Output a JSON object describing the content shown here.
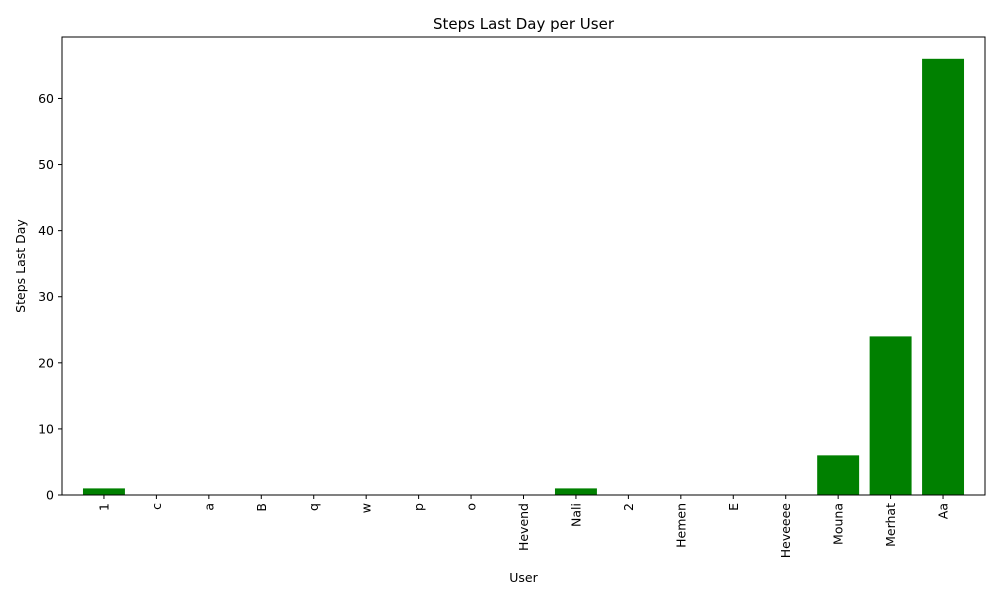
{
  "chart_data": {
    "type": "bar",
    "title": "Steps Last Day per User",
    "xlabel": "User",
    "ylabel": "Steps Last Day",
    "categories": [
      "1",
      "c",
      "a",
      "B",
      "q",
      "w",
      "p",
      "o",
      "Hevend",
      "Nali",
      "2",
      "Hemen",
      "E",
      "Heveeee",
      "Mouna",
      "Merhat",
      "Aa"
    ],
    "values": [
      1,
      0,
      0,
      0,
      0,
      0,
      0,
      0,
      0,
      1,
      0,
      0,
      0,
      0,
      6,
      24,
      66
    ],
    "ylim": [
      0,
      69.3
    ],
    "yticks": [
      0,
      10,
      20,
      30,
      40,
      50,
      60
    ],
    "bar_color": "#008000",
    "grid": false,
    "legend": "none"
  }
}
